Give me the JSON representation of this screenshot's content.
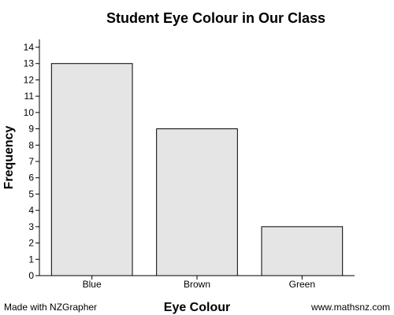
{
  "chart_data": {
    "type": "bar",
    "title": "Student Eye Colour in Our Class",
    "xlabel": "Eye Colour",
    "ylabel": "Frequency",
    "categories": [
      "Blue",
      "Brown",
      "Green"
    ],
    "values": [
      13,
      9,
      3
    ],
    "ylim": [
      0,
      14
    ],
    "yticks": [
      0,
      1,
      2,
      3,
      4,
      5,
      6,
      7,
      8,
      9,
      10,
      11,
      12,
      13,
      14
    ],
    "grid": false,
    "bar_fill": "#e5e5e5",
    "bar_stroke": "#000000"
  },
  "footer": {
    "left": "Made with NZGrapher",
    "right": "www.mathsnz.com"
  }
}
